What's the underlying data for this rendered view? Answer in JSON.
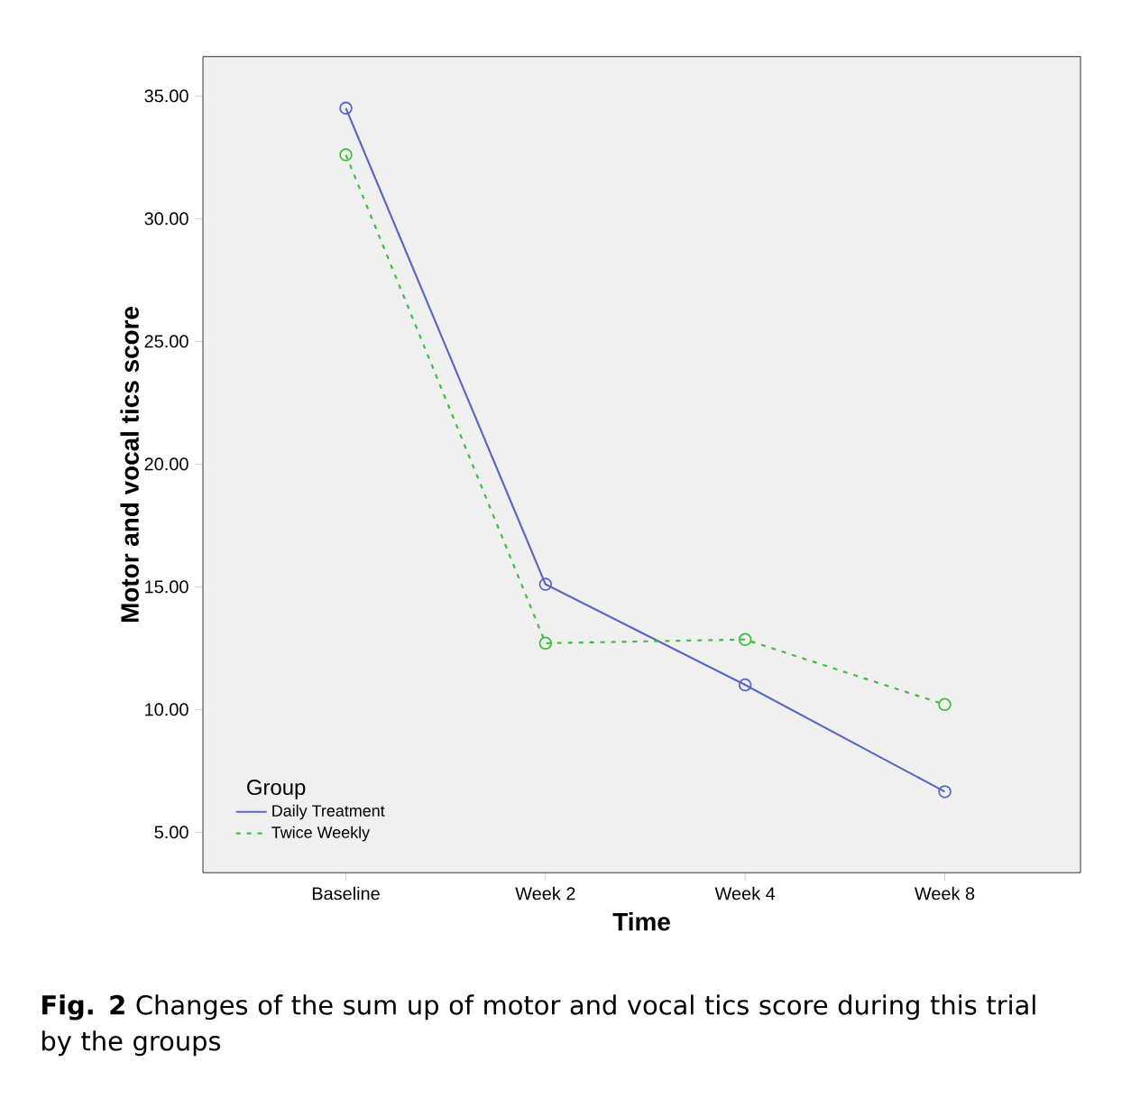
{
  "chart_data": {
    "type": "line",
    "xlabel": "Time",
    "ylabel": "Motor and vocal tics score",
    "legend_title": "Group",
    "categories": [
      "Baseline",
      "Week 2",
      "Week 4",
      "Week 8"
    ],
    "series": [
      {
        "name": "Daily Treatment",
        "color": "#5b67c0",
        "values": [
          34.5,
          15.1,
          11.0,
          6.65
        ],
        "line_style": "solid"
      },
      {
        "name": "Twice Weekly",
        "color": "#3cc03c",
        "values": [
          32.6,
          12.7,
          12.85,
          10.2
        ],
        "line_style": "dotted"
      }
    ],
    "ylim": [
      3.35,
      36.6
    ],
    "yticks": [
      {
        "value": 5,
        "label": "5.00"
      },
      {
        "value": 10,
        "label": "10.00"
      },
      {
        "value": 15,
        "label": "15.00"
      },
      {
        "value": 20,
        "label": "20.00"
      },
      {
        "value": 25,
        "label": "25.00"
      },
      {
        "value": 30,
        "label": "30.00"
      },
      {
        "value": 35,
        "label": "35.00"
      }
    ],
    "marker": "circle",
    "grid": false,
    "legend": "bottom left",
    "annotations": [
      "**Fig. 2**  Changes of the sum up of motor and vocal tics score during this trial by the groups"
    ]
  }
}
